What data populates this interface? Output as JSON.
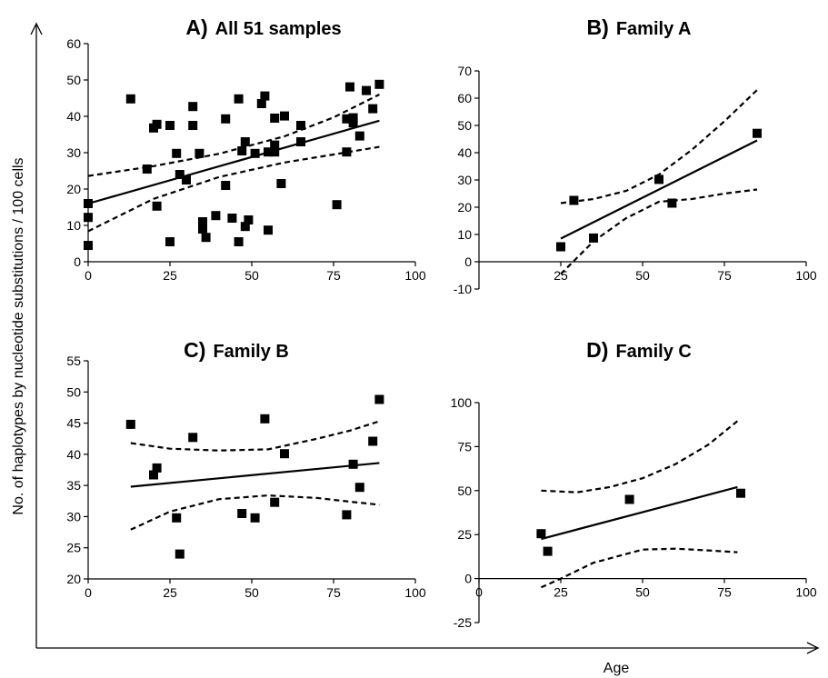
{
  "figure": {
    "ylabel": "No. of haplotypes by nucleotide substitutions / 100 cells",
    "xlabel": "Age"
  },
  "chart_data": [
    {
      "type": "scatter",
      "letter": "A)",
      "title": "All 51 samples",
      "xlim": [
        0,
        100
      ],
      "ylim": [
        0,
        60
      ],
      "xticks": [
        0,
        25,
        50,
        75,
        100
      ],
      "yticks": [
        0,
        10,
        20,
        30,
        40,
        50,
        60
      ],
      "points": [
        [
          0,
          16
        ],
        [
          0,
          12.2
        ],
        [
          0,
          4.5
        ],
        [
          13,
          44.8
        ],
        [
          18,
          25.5
        ],
        [
          20,
          36.8
        ],
        [
          21,
          37.8
        ],
        [
          21,
          15.3
        ],
        [
          25,
          5.5
        ],
        [
          25,
          37.5
        ],
        [
          27,
          29.8
        ],
        [
          28,
          24
        ],
        [
          30,
          22.5
        ],
        [
          32,
          42.7
        ],
        [
          32,
          37.5
        ],
        [
          34,
          29.8
        ],
        [
          35,
          11
        ],
        [
          35,
          9
        ],
        [
          36,
          6.7
        ],
        [
          39,
          12.7
        ],
        [
          42,
          39.3
        ],
        [
          42,
          21
        ],
        [
          44,
          12
        ],
        [
          46,
          44.8
        ],
        [
          46,
          5.5
        ],
        [
          47,
          30.5
        ],
        [
          48,
          33
        ],
        [
          48,
          9.7
        ],
        [
          49,
          11.5
        ],
        [
          51,
          29.8
        ],
        [
          53,
          43.5
        ],
        [
          54,
          45.6
        ],
        [
          55,
          8.7
        ],
        [
          55,
          30.2
        ],
        [
          57,
          39.5
        ],
        [
          57,
          32.1
        ],
        [
          57,
          30.2
        ],
        [
          59,
          21.5
        ],
        [
          60,
          40.1
        ],
        [
          65,
          37.5
        ],
        [
          65,
          33
        ],
        [
          76,
          15.7
        ],
        [
          79,
          30.2
        ],
        [
          79,
          39.3
        ],
        [
          80,
          48.1
        ],
        [
          81,
          38.2
        ],
        [
          83,
          34.6
        ],
        [
          85,
          47.1
        ],
        [
          87,
          42.1
        ],
        [
          89,
          48.8
        ],
        [
          81,
          39.6
        ]
      ],
      "fit": [
        [
          0,
          16
        ],
        [
          89,
          38.8
        ]
      ],
      "ci_upper": [
        [
          0,
          23.6
        ],
        [
          20,
          26.3
        ],
        [
          40,
          29.7
        ],
        [
          60,
          34.5
        ],
        [
          75,
          39.7
        ],
        [
          89,
          46
        ]
      ],
      "ci_lower": [
        [
          0,
          8.4
        ],
        [
          20,
          17.3
        ],
        [
          40,
          23.3
        ],
        [
          60,
          27.3
        ],
        [
          75,
          29.5
        ],
        [
          89,
          31.6
        ]
      ]
    },
    {
      "type": "scatter",
      "letter": "B)",
      "title": "Family A",
      "xlim": [
        0,
        100
      ],
      "ylim": [
        -10,
        70
      ],
      "xticks": [
        25,
        50,
        75,
        100
      ],
      "yticks": [
        -10,
        0,
        10,
        20,
        30,
        40,
        50,
        60,
        70
      ],
      "points": [
        [
          25,
          5.5
        ],
        [
          29,
          22.5
        ],
        [
          35,
          8.7
        ],
        [
          55,
          30.2
        ],
        [
          59,
          21.5
        ],
        [
          85,
          47.1
        ]
      ],
      "fit": [
        [
          25,
          8.5
        ],
        [
          85,
          44.5
        ]
      ],
      "ci_upper": [
        [
          25,
          21.5
        ],
        [
          35,
          23
        ],
        [
          45,
          26
        ],
        [
          55,
          32
        ],
        [
          65,
          41
        ],
        [
          75,
          51.5
        ],
        [
          85,
          63
        ]
      ],
      "ci_lower": [
        [
          25,
          -4.5
        ],
        [
          35,
          7.5
        ],
        [
          45,
          16
        ],
        [
          55,
          22
        ],
        [
          65,
          23
        ],
        [
          75,
          25
        ],
        [
          85,
          26.5
        ]
      ]
    },
    {
      "type": "scatter",
      "letter": "C)",
      "title": "Family B",
      "xlim": [
        0,
        100
      ],
      "ylim": [
        20,
        55
      ],
      "xticks": [
        0,
        25,
        50,
        75,
        100
      ],
      "yticks": [
        20,
        25,
        30,
        35,
        40,
        45,
        50,
        55
      ],
      "points": [
        [
          13,
          44.8
        ],
        [
          20,
          36.7
        ],
        [
          21,
          37.8
        ],
        [
          27,
          29.8
        ],
        [
          28,
          24
        ],
        [
          32,
          42.7
        ],
        [
          47,
          30.5
        ],
        [
          51,
          29.8
        ],
        [
          54,
          45.7
        ],
        [
          57,
          32.3
        ],
        [
          60,
          40.1
        ],
        [
          79,
          30.3
        ],
        [
          81,
          38.4
        ],
        [
          83,
          34.7
        ],
        [
          87,
          42.1
        ],
        [
          89,
          48.8
        ]
      ],
      "fit": [
        [
          13,
          34.8
        ],
        [
          89,
          38.6
        ]
      ],
      "ci_upper": [
        [
          13,
          41.8
        ],
        [
          25,
          40.9
        ],
        [
          40,
          40.6
        ],
        [
          55,
          40.8
        ],
        [
          70,
          42.5
        ],
        [
          80,
          43.8
        ],
        [
          89,
          45.3
        ]
      ],
      "ci_lower": [
        [
          13,
          27.9
        ],
        [
          25,
          30.8
        ],
        [
          40,
          32.8
        ],
        [
          55,
          33.4
        ],
        [
          70,
          33
        ],
        [
          80,
          32.4
        ],
        [
          89,
          31.9
        ]
      ]
    },
    {
      "type": "scatter",
      "letter": "D)",
      "title": "Family C",
      "xlim": [
        0,
        100
      ],
      "ylim": [
        -25,
        100
      ],
      "xticks": [
        0,
        25,
        50,
        75,
        100
      ],
      "yticks": [
        -25,
        0,
        25,
        50,
        75,
        100
      ],
      "points": [
        [
          19,
          25.5
        ],
        [
          21,
          15.5
        ],
        [
          46,
          45
        ],
        [
          80,
          48.5
        ]
      ],
      "fit": [
        [
          19,
          22.5
        ],
        [
          79,
          52
        ]
      ],
      "ci_upper": [
        [
          19,
          50
        ],
        [
          30,
          49
        ],
        [
          40,
          52
        ],
        [
          50,
          57
        ],
        [
          60,
          65
        ],
        [
          70,
          76
        ],
        [
          79,
          89.5
        ]
      ],
      "ci_lower": [
        [
          19,
          -5
        ],
        [
          25,
          0
        ],
        [
          35,
          9
        ],
        [
          50,
          16.5
        ],
        [
          60,
          17
        ],
        [
          70,
          16
        ],
        [
          79,
          15
        ]
      ]
    }
  ]
}
